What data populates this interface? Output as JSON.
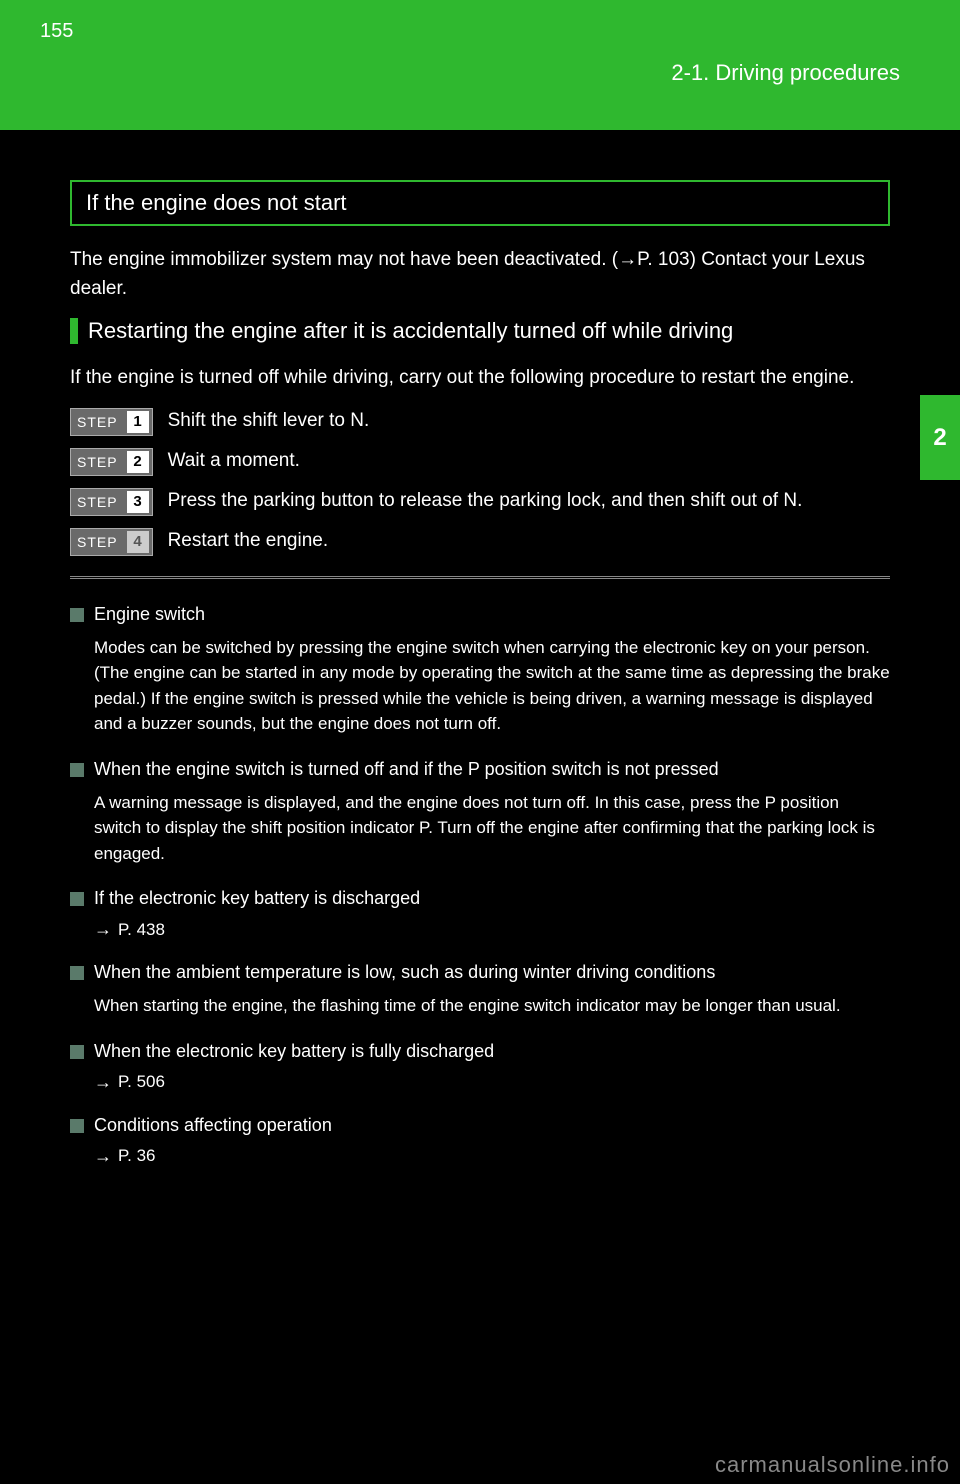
{
  "header": {
    "page_number": "155",
    "section": "2-1. Driving procedures",
    "side_tab": "2"
  },
  "colors": {
    "accent": "#2fb82f",
    "bg": "#000000",
    "text": "#ffffff",
    "step_bg": "#6a6a6a",
    "square": "#5a7a6a",
    "footer": "#888888"
  },
  "sections": {
    "intro_heading": "If the engine does not start",
    "intro_para": "The engine immobilizer system may not have been deactivated. (→P. 103) Contact your Lexus dealer.",
    "restart_heading": "Restarting the engine after it is accidentally turned off while driving",
    "restart_para": "If the engine is turned off while driving, carry out the following procedure to restart the engine.",
    "steps": [
      {
        "label": "Shift the shift lever to N."
      },
      {
        "label": "Wait a moment."
      },
      {
        "label": "Press the parking button to release the parking lock, and then shift out of N."
      },
      {
        "label": "Restart the engine."
      }
    ]
  },
  "notes": [
    {
      "heading": "Engine switch",
      "body": "Modes can be switched by pressing the engine switch when carrying the electronic key on your person. (The engine can be started in any mode by operating the switch at the same time as depressing the brake pedal.) If the engine switch is pressed while the vehicle is being driven, a warning message is displayed and a buzzer sounds, but the engine does not turn off."
    },
    {
      "heading": "When the engine switch is turned off and if the P position switch is not pressed",
      "body": "A warning message is displayed, and the engine does not turn off. In this case, press the P position switch to display the shift position indicator P. Turn off the engine after confirming that the parking lock is engaged."
    },
    {
      "heading": "If the electronic key battery is discharged",
      "crossref": "P. 438"
    },
    {
      "heading": "When the ambient temperature is low, such as during winter driving conditions",
      "body": "When starting the engine, the flashing time of the engine switch indicator may be longer than usual."
    },
    {
      "heading": "When the electronic key battery is fully discharged",
      "crossref": "P. 506"
    },
    {
      "heading": "Conditions affecting operation",
      "crossref": "P. 36"
    }
  ],
  "footer": {
    "url": "carmanualsonline.info"
  }
}
